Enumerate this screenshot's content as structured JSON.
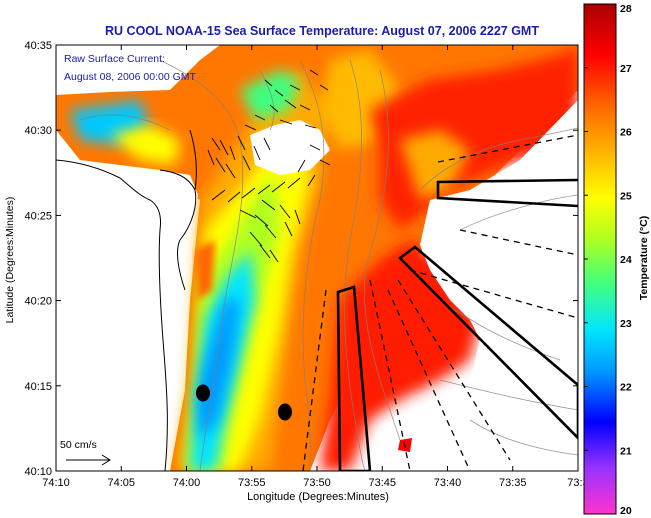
{
  "title": "RU COOL  NOAA-15  Sea Surface Temperature:  August 07, 2006 2227 GMT",
  "current_label_line1": "Raw Surface Current:",
  "current_label_line2": "August 08, 2006 00:00 GMT",
  "scale_label": "50 cm/s",
  "xlabel": "Longitude (Degrees:Minutes)",
  "ylabel": "Latitude (Degrees:Minutes)",
  "colorbar_label": "Temperature (°C)",
  "x_ticks": [
    "74:10",
    "74:05",
    "74:00",
    "73:55",
    "73:50",
    "73:45",
    "73:40",
    "73:35",
    "73:3"
  ],
  "y_ticks": [
    "40:35",
    "40:30",
    "40:25",
    "40:20",
    "40:15",
    "40:10"
  ],
  "colorbar_ticks": [
    "28",
    "27",
    "26",
    "25",
    "24",
    "23",
    "22",
    "21",
    "20"
  ],
  "colors": {
    "title": "#1b1bb0",
    "label_blue": "#1b1bb0",
    "land": "#ffffff",
    "coast": "#000000"
  },
  "colormap": [
    "#ff33cc",
    "#8a2be2",
    "#0000ff",
    "#0099ff",
    "#00e5ff",
    "#40ff80",
    "#b0ff20",
    "#ffff00",
    "#ffbb00",
    "#ff6600",
    "#ff0000",
    "#aa0000"
  ]
}
